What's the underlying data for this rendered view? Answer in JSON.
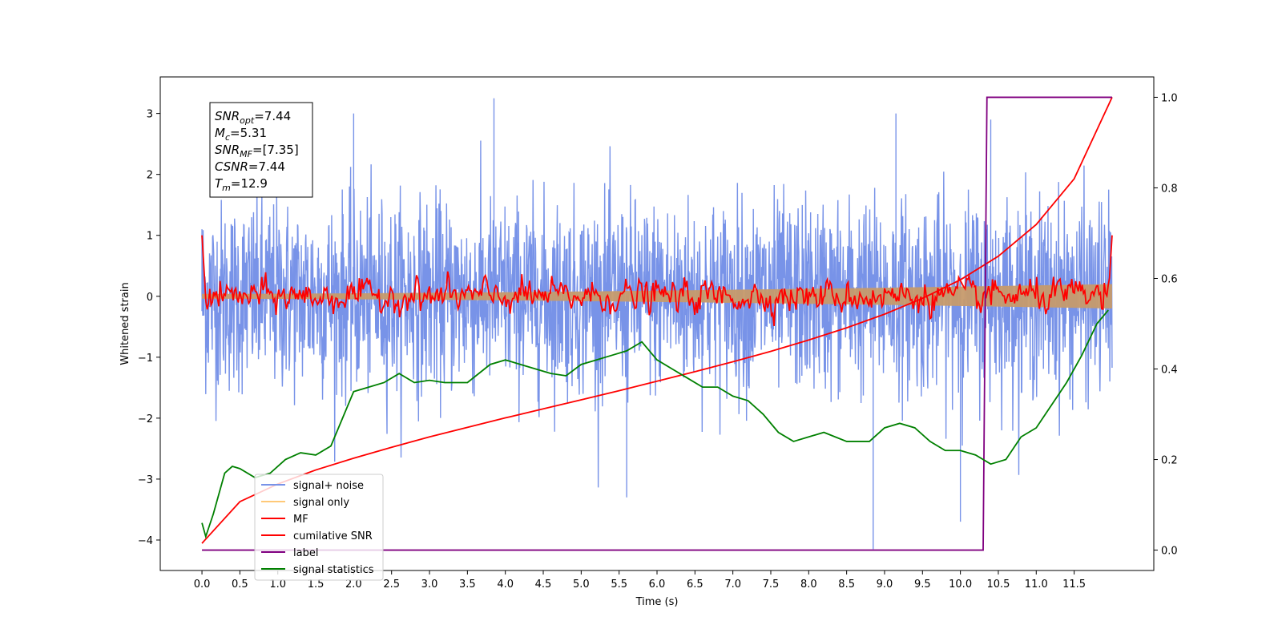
{
  "chart_data": {
    "type": "line",
    "xlabel": "Time (s)",
    "ylabel": "Whitened strain",
    "xlim": [
      -0.55,
      12.55
    ],
    "ylim": [
      -4.5,
      3.6
    ],
    "y2lim": [
      -0.045,
      1.045
    ],
    "x_ticks": [
      0.0,
      0.5,
      1.0,
      1.5,
      2.0,
      2.5,
      3.0,
      3.5,
      4.0,
      4.5,
      5.0,
      5.5,
      6.0,
      6.5,
      7.0,
      7.5,
      8.0,
      8.5,
      9.0,
      9.5,
      10.0,
      10.5,
      11.0,
      11.5
    ],
    "x_tick_labels": [
      "0.0",
      "0.5",
      "1.0",
      "1.5",
      "2.0",
      "2.5",
      "3.0",
      "3.5",
      "4.0",
      "4.5",
      "5.0",
      "5.5",
      "6.0",
      "6.5",
      "7.0",
      "7.5",
      "8.0",
      "8.5",
      "9.0",
      "9.5",
      "10.0",
      "10.5",
      "11.0",
      "11.5"
    ],
    "y_ticks": [
      3,
      2,
      1,
      0,
      -1,
      -2,
      -3,
      -4
    ],
    "y_tick_labels": [
      "3",
      "2",
      "1",
      "0",
      "−1",
      "−2",
      "−3",
      "−4"
    ],
    "y2_ticks": [
      1.0,
      0.8,
      0.6,
      0.4,
      0.2,
      0.0
    ],
    "y2_tick_labels": [
      "1.0",
      "0.8",
      "0.6",
      "0.4",
      "0.2",
      "0.0"
    ],
    "grid": false,
    "legend_placement": "lower-left",
    "annotation_box": [
      {
        "base": "SNR",
        "sub": "opt",
        "value": "=7.44"
      },
      {
        "base": "M",
        "sub": "c",
        "value": "=5.31"
      },
      {
        "base": "SNR",
        "sub": "MF",
        "value": "=[7.35]"
      },
      {
        "base": "CSNR",
        "sub": "",
        "value": "=7.44"
      },
      {
        "base": "T",
        "sub": "m",
        "value": "=12.9"
      }
    ],
    "series": [
      {
        "name": "signal+ noise",
        "color": "#7893e8",
        "axis": "left",
        "x_range": [
          0.0,
          12.0
        ],
        "typical_amplitude": 1.3,
        "min": -4.15,
        "max": 3.25
      },
      {
        "name": "signal only",
        "color": "#ffc978",
        "axis": "left",
        "x_range": [
          0.0,
          12.0
        ],
        "envelope_start": 0.04,
        "envelope_end": 0.2
      },
      {
        "name": "MF",
        "color": "#ff0000",
        "axis": "left",
        "x_range": [
          0.0,
          12.0
        ],
        "start_value": 1.0,
        "end_value": 1.0,
        "typical_amplitude": 0.2
      },
      {
        "name": "cumilative SNR",
        "color": "#ff0000",
        "axis": "right",
        "x": [
          0.0,
          0.5,
          1.0,
          1.5,
          2.0,
          2.5,
          3.0,
          3.5,
          4.0,
          4.5,
          5.0,
          5.5,
          6.0,
          6.5,
          7.0,
          7.5,
          8.0,
          8.5,
          9.0,
          9.5,
          10.0,
          10.5,
          11.0,
          11.5,
          12.0
        ],
        "values": [
          0.015,
          0.107,
          0.146,
          0.177,
          0.203,
          0.227,
          0.25,
          0.271,
          0.292,
          0.312,
          0.332,
          0.352,
          0.373,
          0.394,
          0.416,
          0.439,
          0.464,
          0.491,
          0.521,
          0.556,
          0.597,
          0.649,
          0.719,
          0.82,
          1.0
        ]
      },
      {
        "name": "label",
        "color": "#800080",
        "axis": "right",
        "x": [
          0.0,
          10.3,
          10.35,
          12.0
        ],
        "values": [
          0.0,
          0.0,
          1.0,
          1.0
        ]
      },
      {
        "name": "signal statistics",
        "color": "#008000",
        "axis": "right",
        "x": [
          0.0,
          0.05,
          0.15,
          0.3,
          0.4,
          0.5,
          0.7,
          0.9,
          1.1,
          1.3,
          1.5,
          1.7,
          1.9,
          2.0,
          2.2,
          2.4,
          2.6,
          2.8,
          3.0,
          3.2,
          3.5,
          3.8,
          4.0,
          4.2,
          4.4,
          4.6,
          4.8,
          5.0,
          5.2,
          5.4,
          5.6,
          5.8,
          5.9,
          6.0,
          6.2,
          6.4,
          6.6,
          6.8,
          7.0,
          7.2,
          7.4,
          7.6,
          7.8,
          8.0,
          8.2,
          8.5,
          8.8,
          9.0,
          9.2,
          9.4,
          9.6,
          9.8,
          10.0,
          10.2,
          10.4,
          10.6,
          10.8,
          11.0,
          11.2,
          11.4,
          11.6,
          11.8,
          11.95
        ],
        "values": [
          0.06,
          0.03,
          0.08,
          0.17,
          0.185,
          0.18,
          0.16,
          0.17,
          0.2,
          0.215,
          0.21,
          0.23,
          0.31,
          0.35,
          0.36,
          0.37,
          0.39,
          0.37,
          0.375,
          0.37,
          0.37,
          0.41,
          0.42,
          0.41,
          0.4,
          0.39,
          0.385,
          0.41,
          0.42,
          0.43,
          0.44,
          0.46,
          0.44,
          0.42,
          0.4,
          0.38,
          0.36,
          0.36,
          0.34,
          0.33,
          0.3,
          0.26,
          0.24,
          0.25,
          0.26,
          0.24,
          0.24,
          0.27,
          0.28,
          0.27,
          0.24,
          0.22,
          0.22,
          0.21,
          0.19,
          0.2,
          0.25,
          0.27,
          0.32,
          0.37,
          0.43,
          0.5,
          0.53
        ]
      }
    ]
  }
}
